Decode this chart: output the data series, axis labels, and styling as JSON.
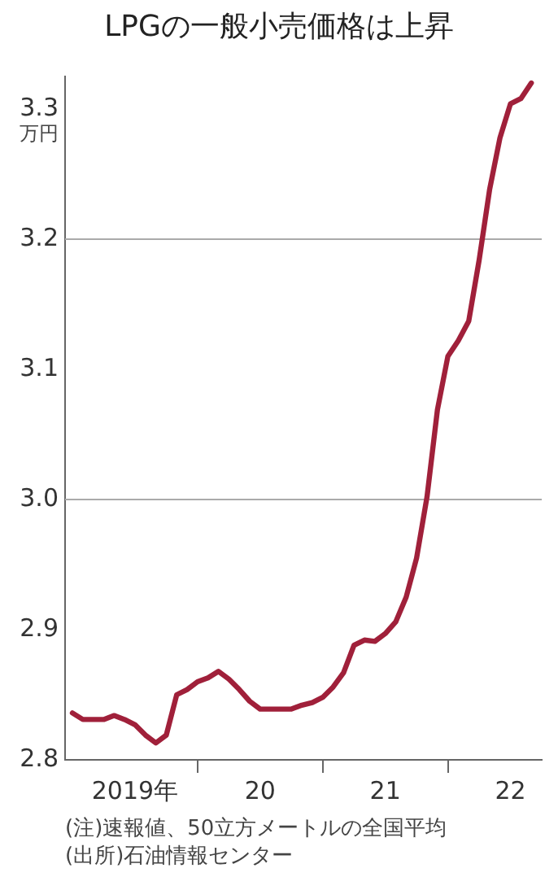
{
  "chart_data": {
    "type": "line",
    "title": "LPGの一般小売価格は上昇",
    "ylabel": "万円",
    "x": [
      "2019-01",
      "2019-02",
      "2019-03",
      "2019-04",
      "2019-05",
      "2019-06",
      "2019-07",
      "2019-08",
      "2019-09",
      "2019-10",
      "2019-11",
      "2019-12",
      "2020-01",
      "2020-02",
      "2020-03",
      "2020-04",
      "2020-05",
      "2020-06",
      "2020-07",
      "2020-08",
      "2020-09",
      "2020-10",
      "2020-11",
      "2020-12",
      "2021-01",
      "2021-02",
      "2021-03",
      "2021-04",
      "2021-05",
      "2021-06",
      "2021-07",
      "2021-08",
      "2021-09",
      "2021-10",
      "2021-11",
      "2021-12",
      "2022-01",
      "2022-02",
      "2022-03",
      "2022-04",
      "2022-05",
      "2022-06",
      "2022-07",
      "2022-08",
      "2022-09"
    ],
    "series": [
      {
        "color": "#a0203a",
        "values": [
          2.836,
          2.831,
          2.831,
          2.831,
          2.834,
          2.831,
          2.827,
          2.819,
          2.813,
          2.819,
          2.85,
          2.854,
          2.86,
          2.863,
          2.868,
          2.862,
          2.854,
          2.845,
          2.839,
          2.839,
          2.839,
          2.839,
          2.842,
          2.844,
          2.848,
          2.856,
          2.867,
          2.888,
          2.892,
          2.891,
          2.897,
          2.906,
          2.925,
          2.955,
          3.002,
          3.069,
          3.11,
          3.122,
          3.137,
          3.184,
          3.238,
          3.278,
          3.304,
          3.308,
          3.32
        ]
      }
    ],
    "xlim": [
      "2018-12-10",
      "2022-10-01"
    ],
    "xticks": [
      {
        "value": "2019-07-01",
        "label": "2019年"
      },
      {
        "value": "2020-01-01",
        "label": null
      },
      {
        "value": "2020-07-01",
        "label": "20"
      },
      {
        "value": "2021-01-01",
        "label": null
      },
      {
        "value": "2021-07-01",
        "label": "21"
      },
      {
        "value": "2022-01-01",
        "label": null
      },
      {
        "value": "2022-07-01",
        "label": "22"
      }
    ],
    "ylim": [
      2.8,
      3.325
    ],
    "yticks": [
      2.8,
      2.9,
      {
        "value": 3.0,
        "label": "3.0"
      },
      3.1,
      3.2,
      3.3
    ],
    "ref_lines": [
      {
        "axis": "y",
        "value": 3.0,
        "color": "#aaaaaa"
      },
      {
        "axis": "y",
        "value": 3.2,
        "color": "#aaaaaa"
      }
    ],
    "grid": false,
    "legend": false,
    "marker": "none",
    "line_style": "solid",
    "annotations": [
      "(注)速報値、50立方メートルの全国平均",
      "(出所)石油情報センター"
    ]
  }
}
